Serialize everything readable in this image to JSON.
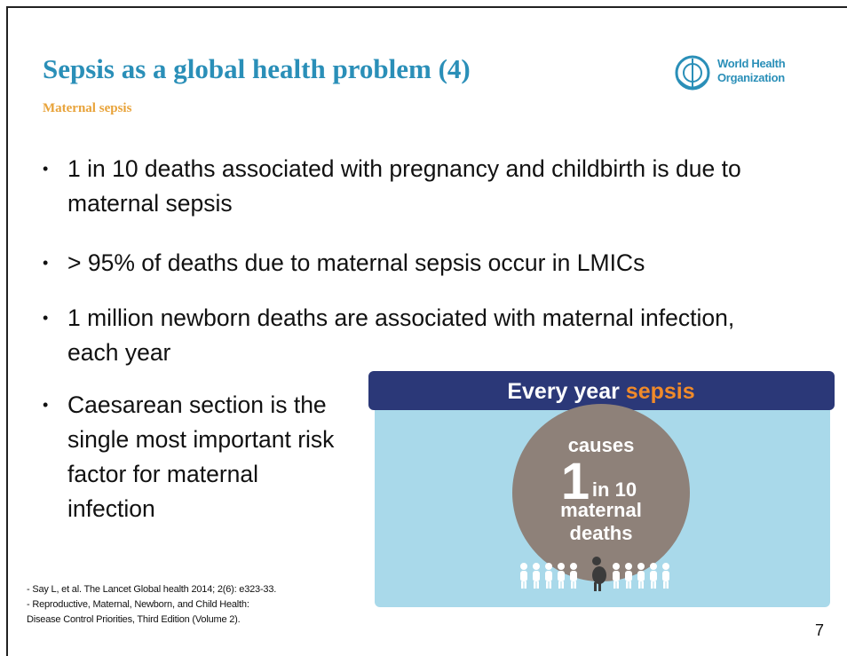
{
  "header": {
    "title": "Sepsis as a global health problem (4)",
    "subtitle": "Maternal sepsis",
    "logo": [
      "World Health",
      "Organization"
    ]
  },
  "bullets": [
    "1 in 10 deaths associated with pregnancy and childbirth is due to maternal sepsis",
    "> 95% of deaths due to maternal sepsis occur in LMICs",
    "1 million newborn deaths are associated with maternal infection, each year",
    "Caesarean section is the single most important risk factor for maternal infection"
  ],
  "infographic": {
    "heading": "Every year ",
    "heading_highlight": "sepsis",
    "causes": "causes",
    "big_number": "1",
    "fraction": "in 10",
    "line1": "maternal",
    "line2": "deaths"
  },
  "references": [
    "- Say L, et al. The Lancet Global health 2014; 2(6): e323-33.",
    "- Reproductive, Maternal, Newborn, and Child Health:",
    "Disease Control Priorities, Third Edition (Volume 2)."
  ],
  "page_number": "7"
}
